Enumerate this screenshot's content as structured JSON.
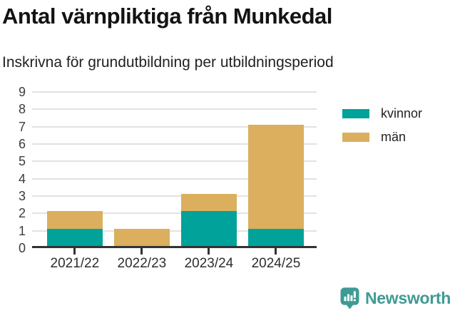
{
  "chart_data": {
    "type": "bar",
    "stacked": true,
    "title": "Antal värnpliktiga från Munkedal",
    "subtitle": "Inskrivna för grundutbildning per utbildningsperiod",
    "categories": [
      "2021/22",
      "2022/23",
      "2023/24",
      "2024/25"
    ],
    "series": [
      {
        "name": "kvinnor",
        "color": "#00a29a",
        "values": [
          1,
          0,
          2,
          1
        ]
      },
      {
        "name": "män",
        "color": "#dbaf5d",
        "values": [
          1,
          1,
          1,
          6
        ]
      }
    ],
    "totals": [
      2,
      1,
      3,
      7
    ],
    "xlabel": "",
    "ylabel": "",
    "ylim": [
      0,
      9
    ],
    "yticks": [
      0,
      1,
      2,
      3,
      4,
      5,
      6,
      7,
      8,
      9
    ],
    "grid": true,
    "legend_position": "right"
  },
  "colors": {
    "grid": "#e2e2e2",
    "axis": "#333333",
    "tick_text": "#3d3d3d",
    "title_text": "#131311",
    "brand": "#3f9a94"
  },
  "footer": {
    "brand": "Newsworthy",
    "logo_icon": "bar-chart-speech-bubble-icon"
  }
}
